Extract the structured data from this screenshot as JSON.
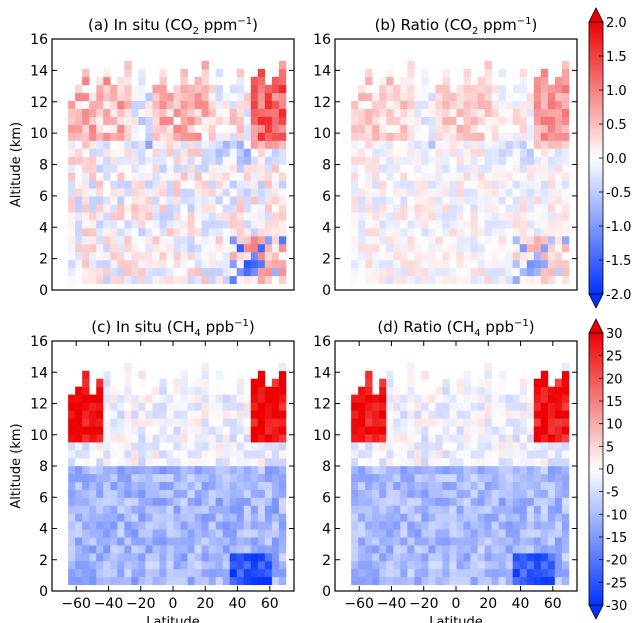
{
  "figure": {
    "colorbar_top": {
      "ticks": [
        "2.0",
        "1.5",
        "1.0",
        "0.5",
        "0.0",
        "-0.5",
        "-1.0",
        "-1.5",
        "-2.0"
      ],
      "vmin": -2.0,
      "vmax": 2.0
    },
    "colorbar_bottom": {
      "ticks": [
        "30",
        "25",
        "20",
        "15",
        "10",
        "5",
        "0",
        "-5",
        "-10",
        "-15",
        "-20",
        "-25",
        "-30"
      ],
      "vmin": -30,
      "vmax": 30
    },
    "colormap": {
      "low": "#0033ff",
      "mid": "#ffffff",
      "high": "#ee0000"
    }
  },
  "chart_data": [
    {
      "type": "heatmap",
      "title_prefix": "(a) In situ (CO",
      "title_sub": "2",
      "title_unit": " ppm",
      "title_sup": "−1",
      "title_suffix": ")",
      "ylabel": "Altitude (km)",
      "xlabel": "",
      "ylim": [
        0,
        16
      ],
      "yticks": [
        "0",
        "2",
        "4",
        "6",
        "8",
        "10",
        "12",
        "14",
        "16"
      ],
      "xlim": [
        -75,
        75
      ],
      "xticks": [],
      "clim": [
        -2.0,
        2.0
      ],
      "profile": "co2_insitu"
    },
    {
      "type": "heatmap",
      "title_prefix": "(b) Ratio (CO",
      "title_sub": "2",
      "title_unit": " ppm",
      "title_sup": "−1",
      "title_suffix": ")",
      "ylabel": "",
      "xlabel": "",
      "ylim": [
        0,
        16
      ],
      "yticks": [
        "0",
        "2",
        "4",
        "6",
        "8",
        "10",
        "12",
        "14",
        "16"
      ],
      "xlim": [
        -75,
        75
      ],
      "xticks": [],
      "clim": [
        -2.0,
        2.0
      ],
      "profile": "co2_ratio"
    },
    {
      "type": "heatmap",
      "title_prefix": "(c) In situ (CH",
      "title_sub": "4",
      "title_unit": " ppb",
      "title_sup": "−1",
      "title_suffix": ")",
      "ylabel": "Altitude (km)",
      "xlabel": "Latitude",
      "ylim": [
        0,
        16
      ],
      "yticks": [
        "0",
        "2",
        "4",
        "6",
        "8",
        "10",
        "12",
        "14",
        "16"
      ],
      "xlim": [
        -75,
        75
      ],
      "xticks": [
        "−60",
        "−40",
        "−20",
        "0",
        "20",
        "40",
        "60"
      ],
      "xtick_values": [
        -60,
        -40,
        -20,
        0,
        20,
        40,
        60
      ],
      "clim": [
        -30,
        30
      ],
      "profile": "ch4_insitu"
    },
    {
      "type": "heatmap",
      "title_prefix": "(d) Ratio (CH",
      "title_sub": "4",
      "title_unit": " ppb",
      "title_sup": "−1",
      "title_suffix": ")",
      "ylabel": "",
      "xlabel": "Latitude",
      "ylim": [
        0,
        16
      ],
      "yticks": [
        "0",
        "2",
        "4",
        "6",
        "8",
        "10",
        "12",
        "14",
        "16"
      ],
      "xlim": [
        -75,
        75
      ],
      "xticks": [
        "−60",
        "−40",
        "−20",
        "0",
        "20",
        "40",
        "60"
      ],
      "xtick_values": [
        -60,
        -40,
        -20,
        0,
        20,
        40,
        60
      ],
      "clim": [
        -30,
        30
      ],
      "profile": "ch4_ratio"
    }
  ]
}
